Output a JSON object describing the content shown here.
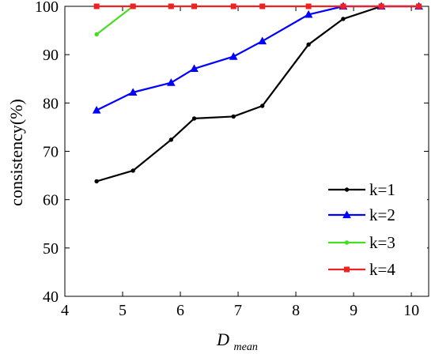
{
  "chart_data": {
    "type": "line",
    "title": "",
    "xlabel": "D",
    "xlabel_subscript": "mean",
    "ylabel": "consistency(%)",
    "xlim": [
      4,
      10.3
    ],
    "ylim": [
      40,
      100
    ],
    "xticks": [
      "4",
      "5",
      "6",
      "7",
      "8",
      "9",
      "10"
    ],
    "yticks": [
      "40",
      "50",
      "60",
      "70",
      "80",
      "90",
      "100"
    ],
    "grid": false,
    "legend_position": "bottom-right",
    "series": [
      {
        "name": "k=1",
        "color": "#000000",
        "marker": "dot",
        "x": [
          4.55,
          5.18,
          5.84,
          6.24,
          6.92,
          7.42,
          8.22,
          8.82,
          9.48,
          10.13
        ],
        "y": [
          63.8,
          66.0,
          72.4,
          76.8,
          77.2,
          79.4,
          92.1,
          97.4,
          100,
          100
        ]
      },
      {
        "name": "k=2",
        "color": "#0000ff",
        "marker": "triangle",
        "x": [
          4.55,
          5.18,
          5.84,
          6.24,
          6.92,
          7.42,
          8.22,
          8.82,
          9.48,
          10.13
        ],
        "y": [
          78.5,
          82.2,
          84.2,
          87.1,
          89.6,
          92.8,
          98.3,
          100,
          100,
          100
        ]
      },
      {
        "name": "k=3",
        "color": "#44dd22",
        "marker": "dot",
        "x": [
          4.55,
          5.18
        ],
        "y": [
          94.2,
          100
        ]
      },
      {
        "name": "k=4",
        "color": "#ee2222",
        "marker": "square",
        "x": [
          4.55,
          5.18,
          5.84,
          6.24,
          6.92,
          7.42,
          8.22,
          8.82,
          9.48,
          10.13
        ],
        "y": [
          100,
          100,
          100,
          100,
          100,
          100,
          100,
          100,
          100,
          100
        ]
      }
    ]
  }
}
